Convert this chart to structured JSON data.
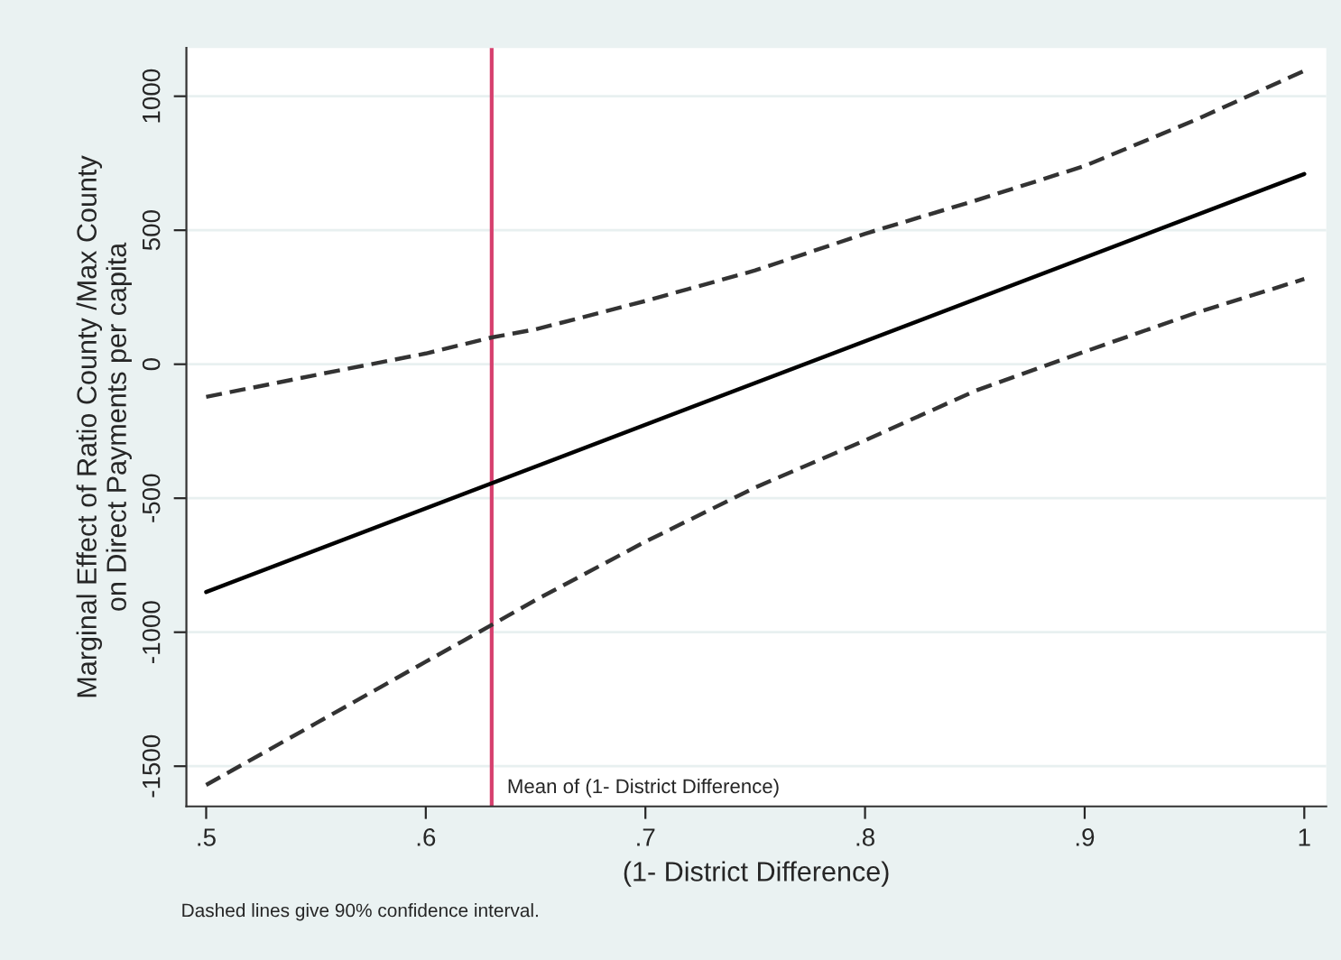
{
  "chart_data": {
    "type": "line",
    "xlabel": "(1- District Difference)",
    "ylabel": "Marginal Effect of Ratio County /Max County\non Direct Payments per capita",
    "xlim": [
      0.491,
      1.01
    ],
    "ylim": [
      -1650,
      1180
    ],
    "xticks": [
      {
        "value": 0.5,
        "label": ".5"
      },
      {
        "value": 0.6,
        "label": ".6"
      },
      {
        "value": 0.7,
        "label": ".7"
      },
      {
        "value": 0.8,
        "label": ".8"
      },
      {
        "value": 0.9,
        "label": ".9"
      },
      {
        "value": 1,
        "label": "1"
      }
    ],
    "yticks": [
      -1500,
      -1000,
      -500,
      0,
      500,
      1000
    ],
    "grid": "y",
    "x": [
      0.5,
      0.55,
      0.6,
      0.63,
      0.65,
      0.7,
      0.75,
      0.8,
      0.85,
      0.9,
      0.95,
      1
    ],
    "series": [
      {
        "color": "#000000",
        "line_style": "solid",
        "x": [
          0.5,
          1
        ],
        "values": [
          -850,
          710
        ]
      },
      {
        "color": "#333333",
        "line_style": "dashed",
        "values": [
          -122,
          -40,
          40,
          100,
          130,
          236,
          350,
          487,
          610,
          740,
          910,
          1095
        ]
      },
      {
        "color": "#333333",
        "line_style": "dashed",
        "values": [
          -1570,
          -1340,
          -1110,
          -973,
          -880,
          -662,
          -460,
          -284,
          -100,
          47,
          190,
          318
        ]
      }
    ],
    "ref_lines": [
      {
        "axis": "x",
        "value": 0.63,
        "label": "Mean of (1- District Difference)",
        "color": "#d6406e"
      }
    ],
    "annotations": [
      "Dashed lines give 90% confidence interval."
    ]
  }
}
